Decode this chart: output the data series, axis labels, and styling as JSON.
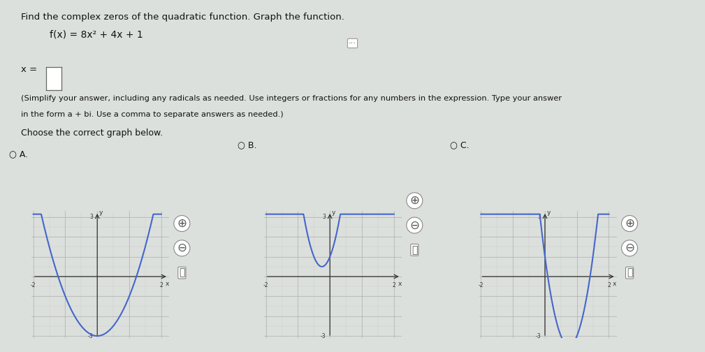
{
  "title_text": "Find the complex zeros of the quadratic function. Graph the function.",
  "func_label": "f(x) = 8x² + 4x + 1",
  "instruction1": "(Simplify your answer, including any radicals as needed. Use integers or fractions for any numbers in the expression. Type your answer",
  "instruction2": "in the form a + bi. Use a comma to separate answers as needed.)",
  "choose_label": "Choose the correct graph below.",
  "graph_xlim": [
    -2,
    2
  ],
  "graph_ylim": [
    -3,
    3
  ],
  "curve_color": "#4466cc",
  "curve_linewidth": 1.5,
  "bg_color": "#dce0dc",
  "graph_bg": "#ffffff",
  "grid_color": "#bbbbbb",
  "axis_color": "#333333",
  "text_color": "#111111",
  "graphA_a": 2,
  "graphA_b": 0,
  "graphA_c": -3,
  "graphB_a": 8,
  "graphB_b": 4,
  "graphB_c": 1,
  "graphC_a": 8,
  "graphC_b": -12,
  "graphC_c": 1
}
